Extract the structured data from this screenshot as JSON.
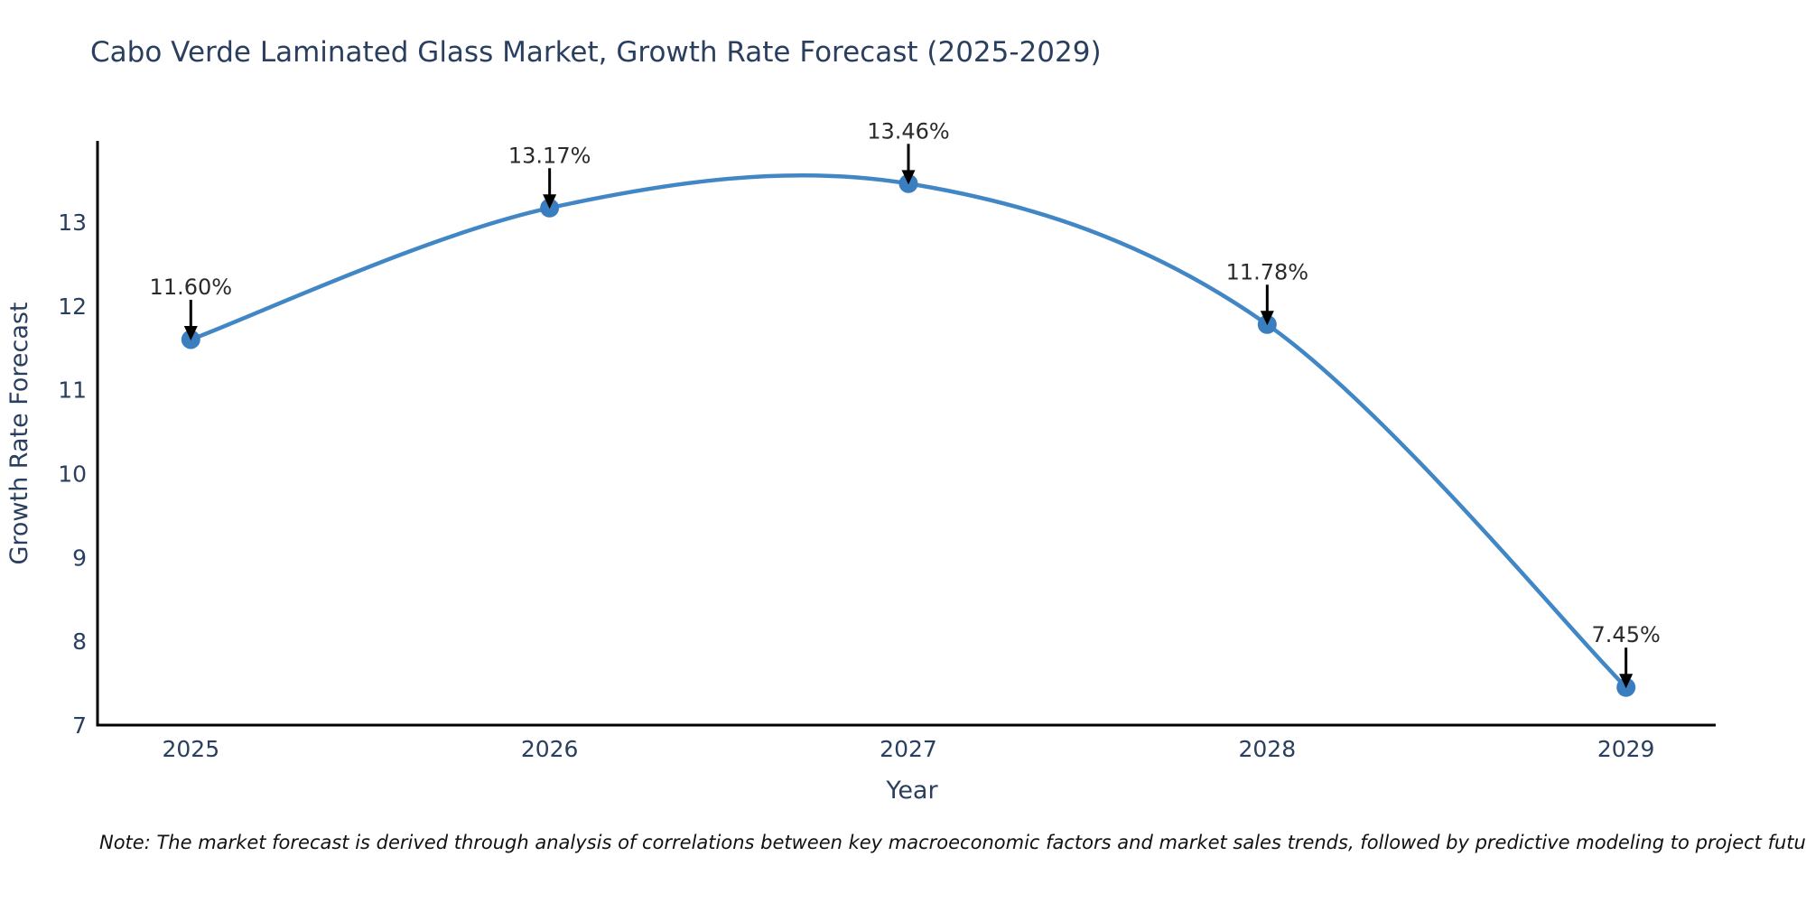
{
  "title": "Cabo Verde Laminated Glass Market, Growth Rate Forecast (2025-2029)",
  "note": "Note: The market forecast is derived through analysis of correlations between key macroeconomic factors and market sales trends, followed by predictive modeling to project future sales",
  "chart_data": {
    "type": "line",
    "line_shape": "spline",
    "title": "Cabo Verde Laminated Glass Market, Growth Rate Forecast (2025-2029)",
    "xlabel": "Year",
    "ylabel": "Growth Rate Forecast",
    "x": [
      2025,
      2026,
      2027,
      2028,
      2029
    ],
    "y": [
      11.6,
      13.17,
      13.46,
      11.78,
      7.45
    ],
    "point_labels": [
      "11.60%",
      "13.17%",
      "13.46%",
      "11.78%",
      "7.45%"
    ],
    "xticks": [
      2025,
      2026,
      2027,
      2028,
      2029
    ],
    "yticks": [
      7,
      8,
      9,
      10,
      11,
      12,
      13
    ],
    "xlim": [
      2024.74,
      2029.25
    ],
    "ylim": [
      7,
      13.97
    ],
    "grid": false,
    "legend": false,
    "annotation_style": "black down-arrow from each percentage label to its data point",
    "colors": {
      "line": "#4187c5",
      "marker": "#3a7ebf",
      "axis": "#000000",
      "axis_text": "#2a3f5f",
      "annotation_text": "#2a2a2a",
      "arrow": "#000000",
      "background": "#ffffff"
    }
  }
}
